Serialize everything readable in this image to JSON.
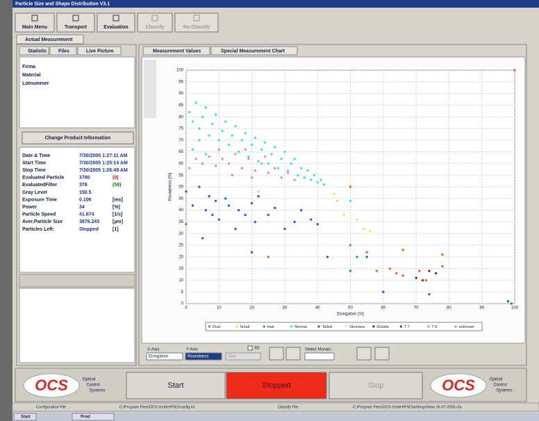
{
  "window": {
    "title": "Particle Size and Shape Distribution V3.1"
  },
  "toolbar": [
    "Main Menu",
    "Transport",
    "Evaluation",
    "Classify",
    "Re-Classify"
  ],
  "tabs": {
    "main": "Actual Measurement",
    "left": [
      "Statistic",
      "Files",
      "Live Picture"
    ],
    "right": [
      "Measurement Values",
      "Special Measurement Chart"
    ]
  },
  "product": [
    "Firma",
    "Material",
    "Lotnummer"
  ],
  "product_button": "Change Product Information",
  "stats": [
    {
      "label": "Date & Time",
      "value": "7/30/2005 1:27:11 AM"
    },
    {
      "label": "Start Time",
      "value": "7/30/2005 1:25:14 AM"
    },
    {
      "label": "Stop Time",
      "value": "7/30/2005 1:26:49 AM"
    },
    {
      "label": "Evaluated Particle",
      "value": "3780",
      "note": "(0)",
      "note_color": "#d01010"
    },
    {
      "label": "EvaluatedFilter",
      "value": "378",
      "note": "(58)",
      "note_color": "#108010"
    },
    {
      "label": "Gray Level",
      "value": "150.5"
    },
    {
      "label": "Exposure Time",
      "value": "0.106",
      "note": "[ms]"
    },
    {
      "label": "Power",
      "value": "34",
      "note": "[%]"
    },
    {
      "label": "Particle Speed",
      "value": "41.874",
      "note": "[1/s]"
    },
    {
      "label": "Aver.Particle Size",
      "value": "3876.243",
      "note": "[µm]"
    },
    {
      "label": "Particles Left:",
      "value": "Stopped",
      "note": "[1]"
    }
  ],
  "controls": {
    "x_axis": "X-Axis",
    "x_value": "Elongation",
    "y_axis": "Y-Axis",
    "y_value": "Roundness",
    "three_d": "3D",
    "size": "Size",
    "mosaic": "Select Mosaic:"
  },
  "buttons": {
    "start": "Start",
    "stopped": "Stopped",
    "stop": "Stop"
  },
  "logo": {
    "name": "OCS",
    "text": [
      "Optical",
      "Control",
      "Systems"
    ]
  },
  "status": [
    "Configuration File",
    "C:\\Program Files\\OCS GmbH\\PSD\\config.ini",
    "Classify File",
    "C:\\Program Files\\OCS GmbH\\PSD\\settings\\New 16-07-2005.cfa"
  ],
  "taskbar": [
    "Start",
    "Prod"
  ],
  "chart_data": {
    "type": "scatter",
    "x_label": "Elongation [%]",
    "y_label": "Roundness [%]",
    "xlim": [
      0,
      100
    ],
    "ylim": [
      0,
      100
    ],
    "xticks": [
      0,
      10,
      20,
      30,
      40,
      50,
      60,
      70,
      80,
      90,
      100
    ],
    "yticks": [
      0,
      5,
      10,
      15,
      20,
      25,
      30,
      35,
      40,
      45,
      50,
      55,
      60,
      65,
      70,
      75,
      80,
      85,
      90,
      95,
      100
    ],
    "grid": true,
    "series": [
      {
        "name": "Dust",
        "color": "#e8682a",
        "x": [
          0,
          25,
          50,
          50,
          55,
          58,
          62,
          64,
          66,
          66,
          70,
          71,
          73,
          78,
          78,
          100
        ],
        "values": [
          34,
          20,
          50,
          25,
          22,
          14,
          15,
          13,
          12,
          23,
          11,
          14,
          10,
          16,
          21,
          100
        ]
      },
      {
        "name": "Small",
        "color": "#e6e070",
        "x": [
          45,
          46,
          48,
          52,
          54,
          56,
          22
        ],
        "values": [
          47,
          44,
          38,
          36,
          32,
          31,
          48
        ]
      },
      {
        "name": "Hair",
        "color": "#20a060",
        "x": [
          50,
          52,
          99
        ],
        "values": [
          14,
          20,
          0
        ]
      },
      {
        "name": "Normal",
        "color": "#3fe0e6",
        "x": [
          1,
          2,
          3,
          4,
          5,
          6,
          7,
          8,
          9,
          10,
          11,
          12,
          13,
          14,
          15,
          16,
          17,
          18,
          19,
          20,
          21,
          22,
          23,
          24,
          25,
          26,
          27,
          28,
          29,
          30,
          31,
          32,
          33,
          34,
          35,
          36,
          37,
          38,
          39,
          40,
          41,
          42,
          2,
          4,
          6,
          50
        ],
        "values": [
          82,
          78,
          86,
          75,
          80,
          84,
          72,
          77,
          81,
          70,
          74,
          78,
          68,
          72,
          76,
          65,
          70,
          73,
          63,
          68,
          71,
          61,
          66,
          69,
          60,
          64,
          67,
          58,
          62,
          65,
          57,
          60,
          62,
          55,
          58,
          54,
          57,
          53,
          55,
          52,
          53,
          51,
          66,
          70,
          64,
          44
        ]
      },
      {
        "name": "Tailed",
        "color": "#2a62d0",
        "x": [
          0,
          2,
          4,
          5,
          6,
          7,
          8,
          9,
          10,
          12,
          13,
          15,
          16,
          18,
          20,
          21,
          22,
          25,
          27,
          30,
          33,
          35,
          38,
          40,
          43,
          20,
          55,
          60,
          74,
          98
        ],
        "values": [
          48,
          42,
          50,
          28,
          40,
          46,
          38,
          44,
          36,
          45,
          42,
          32,
          40,
          38,
          43,
          35,
          46,
          38,
          41,
          32,
          35,
          40,
          36,
          34,
          20,
          22,
          20,
          5,
          4,
          1
        ]
      },
      {
        "name": "Structure",
        "color": "#f0eea8",
        "x": [],
        "values": []
      },
      {
        "name": "Double",
        "color": "#404040",
        "x": [
          70,
          76
        ],
        "values": [
          11,
          13
        ]
      },
      {
        "name": "T 7",
        "color": "#803020",
        "x": [
          72,
          74
        ],
        "values": [
          10,
          14
        ]
      },
      {
        "name": "T 8",
        "color": "#e884d6",
        "x": [
          1,
          3,
          5,
          7,
          9,
          11,
          13,
          15,
          17,
          19,
          21,
          23,
          25,
          27,
          29,
          31,
          33,
          14,
          20,
          10,
          18,
          24
        ],
        "values": [
          58,
          62,
          60,
          63,
          59,
          62,
          60,
          64,
          58,
          62,
          57,
          60,
          56,
          58,
          54,
          56,
          53,
          55,
          54,
          66,
          66,
          63
        ]
      },
      {
        "name": "unknown",
        "color": "#a0a0a0",
        "x": [],
        "values": []
      }
    ]
  }
}
